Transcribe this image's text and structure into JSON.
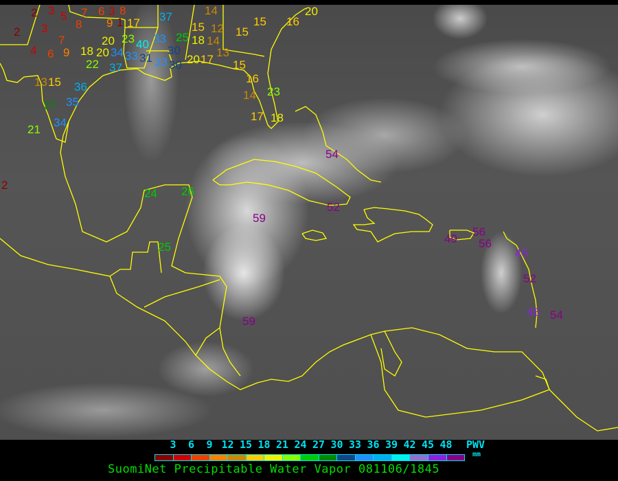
{
  "title": "SuomiNet Precipitable Water Vapor 081106/1845",
  "legend": {
    "unit_label": "PWV",
    "unit_sub": "mm",
    "ticks": [
      "3",
      "6",
      "9",
      "12",
      "15",
      "18",
      "21",
      "24",
      "27",
      "30",
      "33",
      "36",
      "39",
      "42",
      "45",
      "48"
    ],
    "colors": [
      "#8b0000",
      "#d00000",
      "#f04000",
      "#ff8000",
      "#cc8800",
      "#ffcc00",
      "#f0f000",
      "#88ff00",
      "#00cc00",
      "#008800",
      "#114488",
      "#2090ff",
      "#00b0f0",
      "#00f0f0",
      "#9070d0",
      "#9020e0",
      "#880088"
    ]
  },
  "map": {
    "background": "GOES infrared satellite imagery",
    "coastline_color": "#ffff00",
    "stations": [
      "2",
      "3",
      "5",
      "7",
      "6",
      "3",
      "8",
      "9",
      "1",
      "17",
      "8",
      "2",
      "3",
      "7",
      "4",
      "6",
      "9",
      "18",
      "20",
      "20",
      "23",
      "40",
      "34",
      "33",
      "31",
      "33",
      "37",
      "25",
      "30",
      "33",
      "30",
      "20",
      "17",
      "22",
      "37",
      "15",
      "12",
      "18",
      "14",
      "13",
      "15",
      "15",
      "16",
      "20",
      "14",
      "13",
      "15",
      "36",
      "35",
      "27",
      "34",
      "21",
      "15",
      "16",
      "14",
      "23",
      "17",
      "18",
      "2",
      "24",
      "26",
      "25",
      "59",
      "59",
      "54",
      "52",
      "49",
      "56",
      "56",
      "45",
      "52",
      "45",
      "54"
    ]
  }
}
